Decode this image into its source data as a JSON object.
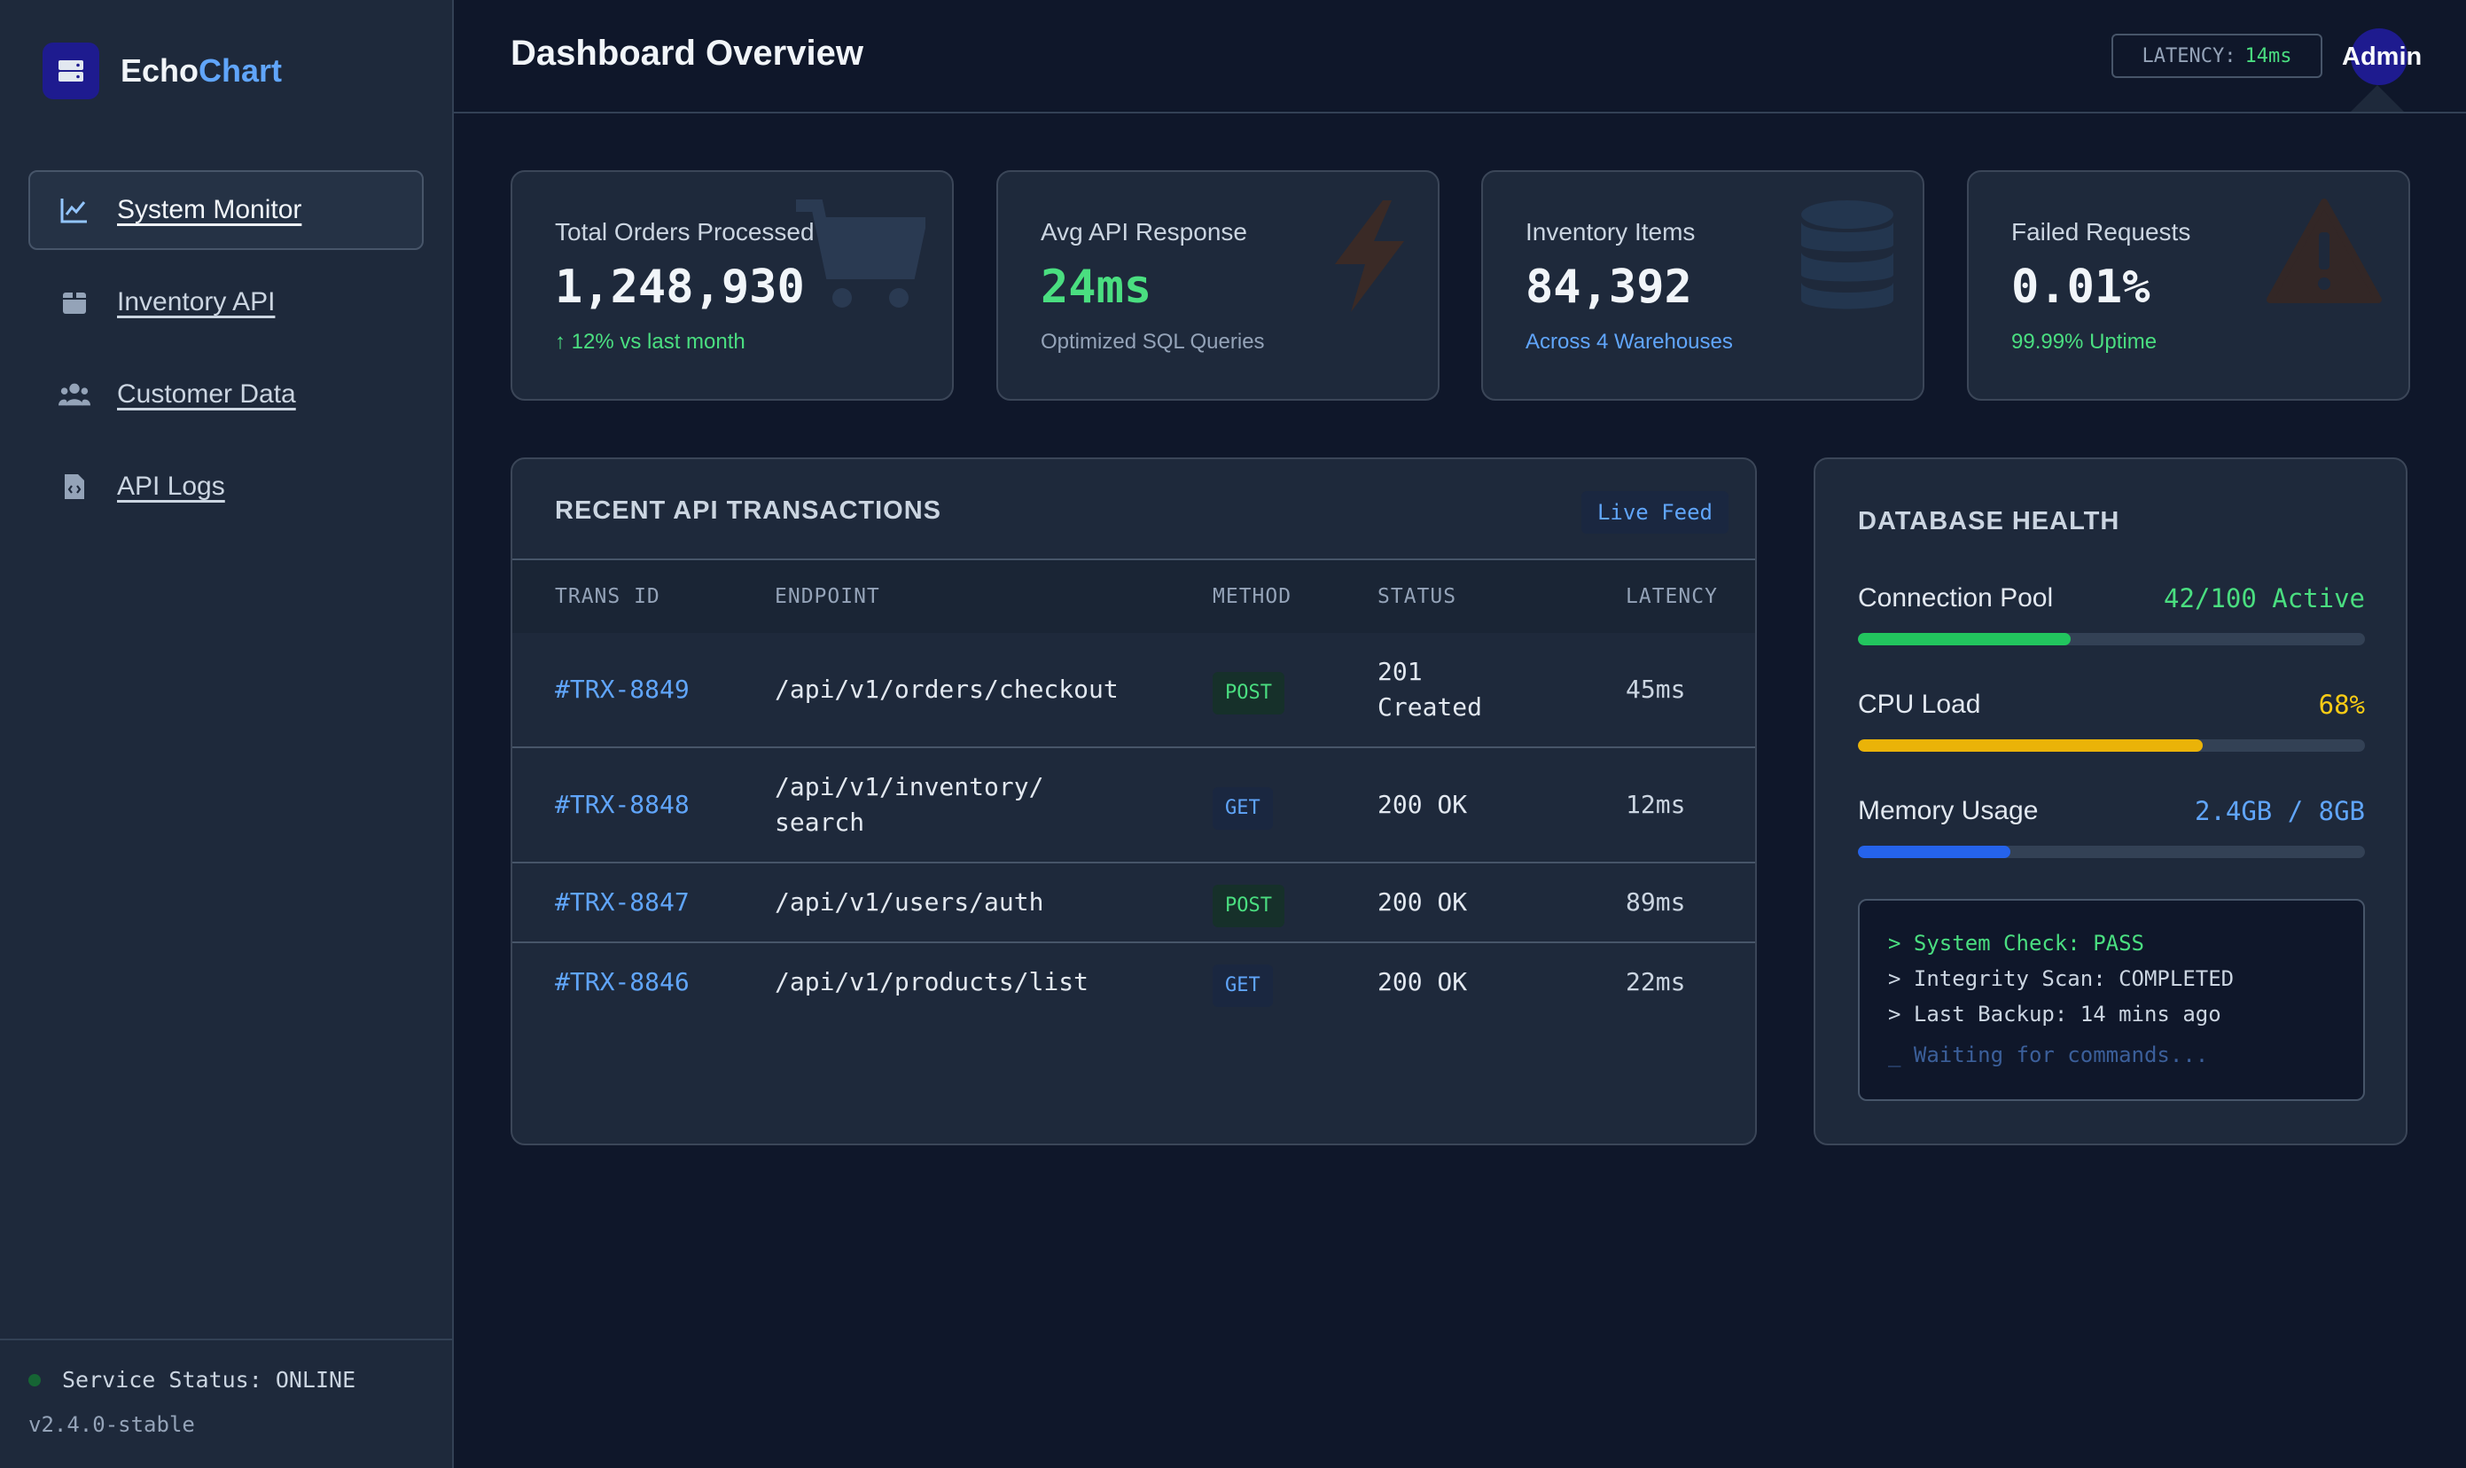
{
  "brand": {
    "name_part1": "Echo",
    "name_part2": "Chart"
  },
  "sidebar": {
    "items": [
      {
        "label": "System Monitor",
        "icon": "chart-line-icon",
        "active": true
      },
      {
        "label": "Inventory API",
        "icon": "box-icon",
        "active": false
      },
      {
        "label": "Customer Data",
        "icon": "users-icon",
        "active": false
      },
      {
        "label": "API Logs",
        "icon": "code-file-icon",
        "active": false
      }
    ],
    "status_text": "Service Status: ONLINE",
    "version": "v2.4.0-stable"
  },
  "header": {
    "title": "Dashboard Overview",
    "latency_label": "LATENCY:",
    "latency_value": "14ms",
    "user_label": "Admin"
  },
  "stats": [
    {
      "label": "Total Orders Processed",
      "value": "1,248,930",
      "sub": "12% vs last month",
      "icon": "cart-icon"
    },
    {
      "label": "Avg API Response",
      "value": "24ms",
      "sub": "Optimized SQL Queries",
      "icon": "bolt-icon"
    },
    {
      "label": "Inventory Items",
      "value": "84,392",
      "sub": "Across 4 Warehouses",
      "icon": "database-icon"
    },
    {
      "label": "Failed Requests",
      "value": "0.01%",
      "sub": "99.99% Uptime",
      "icon": "warning-icon"
    }
  ],
  "transactions": {
    "title": "RECENT API TRANSACTIONS",
    "badge": "Live Feed",
    "columns": [
      "TRANS ID",
      "ENDPOINT",
      "METHOD",
      "STATUS",
      "LATENCY"
    ],
    "rows": [
      {
        "id": "#TRX-8849",
        "endpoint_line1": "/api/v1/orders/checkout",
        "endpoint_line2": "",
        "method": "POST",
        "status_line1": "201",
        "status_line2": "Created",
        "latency": "45ms"
      },
      {
        "id": "#TRX-8848",
        "endpoint_line1": "/api/v1/inventory/",
        "endpoint_line2": "search",
        "method": "GET",
        "status_line1": "200 OK",
        "status_line2": "",
        "latency": "12ms"
      },
      {
        "id": "#TRX-8847",
        "endpoint_line1": "/api/v1/users/auth",
        "endpoint_line2": "",
        "method": "POST",
        "status_line1": "200 OK",
        "status_line2": "",
        "latency": "89ms"
      },
      {
        "id": "#TRX-8846",
        "endpoint_line1": "/api/v1/products/list",
        "endpoint_line2": "",
        "method": "GET",
        "status_line1": "200 OK",
        "status_line2": "",
        "latency": "22ms"
      }
    ]
  },
  "db_health": {
    "title": "DATABASE HEALTH",
    "metrics": [
      {
        "label": "Connection Pool",
        "value": "42/100 Active",
        "fraction": 0.42,
        "color": "#22c55e"
      },
      {
        "label": "CPU Load",
        "value": "68%",
        "fraction": 0.68,
        "color": "#eab308"
      },
      {
        "label": "Memory Usage",
        "value": "2.4GB / 8GB",
        "fraction": 0.3,
        "color": "#2563eb"
      }
    ],
    "terminal": [
      "> System Check: PASS",
      "> Integrity Scan: COMPLETED",
      "> Last Backup: 14 mins ago",
      "_ Waiting for commands..."
    ]
  },
  "colors": {
    "accent": "#60a5fa",
    "success": "#4ade80",
    "warning": "#eab308",
    "bg": "#0f172a",
    "panel": "#1e293b"
  }
}
